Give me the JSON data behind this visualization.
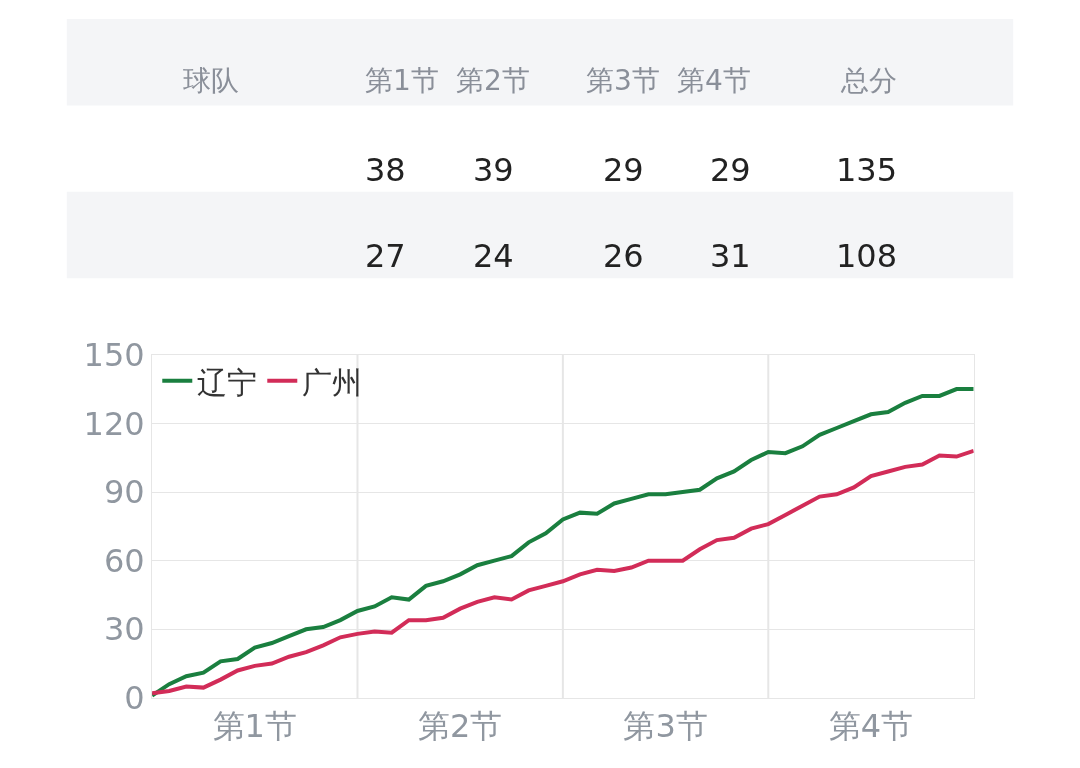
{
  "chart_data": [
    {
      "type": "other",
      "annotations": [
        "球队",
        "第1节",
        "第2节",
        "第3节",
        "第4节",
        "总分",
        "38",
        "39",
        "29",
        "29",
        "135",
        "27",
        "24",
        "26",
        "31",
        "108"
      ]
    },
    {
      "type": "line",
      "categories": [
        null,
        null,
        null,
        null,
        null,
        null,
        "第1节",
        null,
        null,
        null,
        null,
        null,
        null,
        null,
        null,
        null,
        null,
        null,
        "第2节",
        null,
        null,
        null,
        null,
        null,
        null,
        null,
        null,
        null,
        null,
        null,
        "第3节",
        null,
        null,
        null,
        null,
        null,
        null,
        null,
        null,
        null,
        null,
        null,
        "第4节",
        null,
        null,
        null,
        null,
        null,
        null
      ],
      "ylim": [
        0,
        150
      ],
      "yticks": [
        0,
        30,
        60,
        90,
        120,
        150
      ],
      "grid": "y",
      "legend": "top left",
      "series": [
        {
          "name": "辽宁",
          "color": "#1a7f3f",
          "values": [
            1,
            6,
            9.5,
            11,
            16,
            17,
            22,
            24,
            27,
            30,
            31,
            34,
            38,
            40,
            44,
            43,
            49,
            51,
            54,
            58,
            60,
            62,
            68,
            72,
            78,
            81,
            80.5,
            85,
            87,
            89,
            89,
            90,
            91,
            96,
            99,
            104,
            107.5,
            107,
            110,
            115,
            118,
            121,
            124,
            125,
            129,
            132,
            132,
            135,
            135
          ]
        },
        {
          "name": "广州",
          "color": "#d22c58",
          "values": [
            2,
            3,
            5,
            4.5,
            8,
            12,
            14,
            15,
            18,
            20,
            23,
            26.5,
            28,
            29,
            28.5,
            34,
            34,
            35,
            39,
            42,
            44,
            43,
            47,
            49,
            51,
            54,
            56,
            55.5,
            57,
            60,
            60,
            60,
            65,
            69,
            70,
            74,
            76,
            80,
            84,
            88,
            89,
            92,
            97,
            99,
            101,
            102,
            106,
            105.5,
            108
          ]
        }
      ]
    }
  ]
}
